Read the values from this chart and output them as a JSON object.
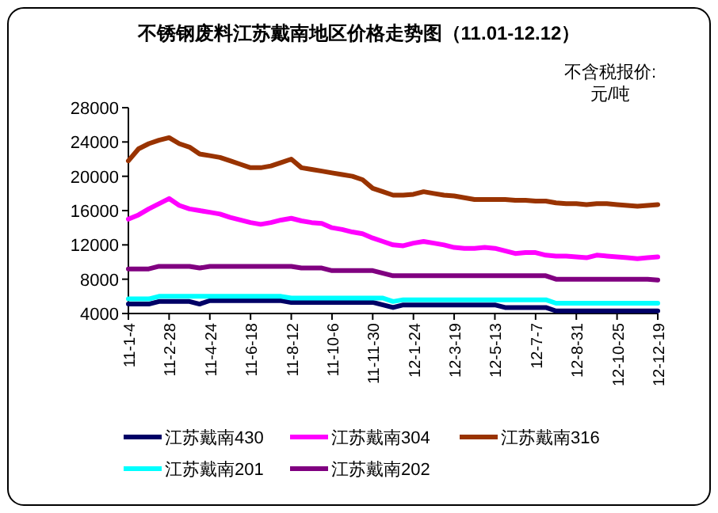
{
  "chart_data": {
    "type": "line",
    "title": "不锈钢废料江苏戴南地区价格走势图（11.01-12.12）",
    "annotations": [
      "不含税报价:",
      "元/吨"
    ],
    "categories": [
      "11-1-4",
      null,
      null,
      null,
      "11-2-28",
      null,
      null,
      null,
      "11-4-24",
      null,
      null,
      null,
      "11-6-18",
      null,
      null,
      null,
      "11-8-12",
      null,
      null,
      null,
      "11-10-6",
      null,
      null,
      null,
      "11-11-30",
      null,
      null,
      null,
      "12-1-24",
      null,
      null,
      null,
      "12-3-19",
      null,
      null,
      null,
      "12-5-13",
      null,
      null,
      null,
      "12-7-7",
      null,
      null,
      null,
      "12-8-31",
      null,
      null,
      null,
      "12-10-25",
      null,
      null,
      null,
      "12-12-19"
    ],
    "series": [
      {
        "name": "江苏戴南430",
        "color": "#000066",
        "values": [
          5100,
          5100,
          5100,
          5400,
          5400,
          5400,
          5400,
          5100,
          5500,
          5500,
          5500,
          5500,
          5500,
          5500,
          5500,
          5500,
          5300,
          5300,
          5300,
          5300,
          5300,
          5300,
          5300,
          5300,
          5300,
          5000,
          4700,
          5000,
          5000,
          5000,
          5000,
          5000,
          5000,
          5000,
          5000,
          5000,
          5000,
          4700,
          4700,
          4700,
          4700,
          4700,
          4300,
          4300,
          4300,
          4300,
          4300,
          4300,
          4300,
          4300,
          4300,
          4300,
          4300
        ]
      },
      {
        "name": "江苏戴南304",
        "color": "#ff00ff",
        "values": [
          15000,
          15500,
          16200,
          16800,
          17400,
          16600,
          16200,
          16000,
          15800,
          15600,
          15200,
          14900,
          14600,
          14400,
          14600,
          14900,
          15100,
          14800,
          14600,
          14500,
          14000,
          13800,
          13500,
          13300,
          12800,
          12400,
          12000,
          11900,
          12200,
          12400,
          12200,
          12000,
          11700,
          11600,
          11600,
          11700,
          11600,
          11300,
          11000,
          11100,
          11100,
          10800,
          10700,
          10700,
          10600,
          10500,
          10800,
          10700,
          10600,
          10500,
          10400,
          10500,
          10600
        ]
      },
      {
        "name": "江苏戴南316",
        "color": "#993300",
        "values": [
          21800,
          23200,
          23800,
          24200,
          24500,
          23800,
          23400,
          22600,
          22400,
          22200,
          21800,
          21400,
          21000,
          21000,
          21200,
          21600,
          22000,
          21000,
          20800,
          20600,
          20400,
          20200,
          20000,
          19600,
          18600,
          18200,
          17800,
          17800,
          17900,
          18200,
          18000,
          17800,
          17700,
          17500,
          17300,
          17300,
          17300,
          17300,
          17200,
          17200,
          17100,
          17100,
          16900,
          16800,
          16800,
          16700,
          16800,
          16800,
          16700,
          16600,
          16500,
          16600,
          16700
        ]
      },
      {
        "name": "江苏戴南201",
        "color": "#00ffff",
        "values": [
          5700,
          5700,
          5700,
          6000,
          6000,
          6000,
          6000,
          6000,
          6000,
          6000,
          6000,
          6000,
          6000,
          6000,
          6000,
          6000,
          5800,
          5800,
          5800,
          5800,
          5800,
          5800,
          5800,
          5800,
          5800,
          5800,
          5400,
          5600,
          5600,
          5600,
          5600,
          5600,
          5600,
          5600,
          5600,
          5600,
          5600,
          5600,
          5600,
          5600,
          5600,
          5600,
          5200,
          5200,
          5200,
          5200,
          5200,
          5200,
          5200,
          5200,
          5200,
          5200,
          5200
        ]
      },
      {
        "name": "江苏戴南202",
        "color": "#800080",
        "values": [
          9200,
          9200,
          9200,
          9500,
          9500,
          9500,
          9500,
          9300,
          9500,
          9500,
          9500,
          9500,
          9500,
          9500,
          9500,
          9500,
          9500,
          9300,
          9300,
          9300,
          9000,
          9000,
          9000,
          9000,
          9000,
          8700,
          8400,
          8400,
          8400,
          8400,
          8400,
          8400,
          8400,
          8400,
          8400,
          8400,
          8400,
          8400,
          8400,
          8400,
          8400,
          8400,
          8000,
          8000,
          8000,
          8000,
          8000,
          8000,
          8000,
          8000,
          8000,
          8000,
          7900
        ]
      }
    ],
    "ylim": [
      4000,
      28000
    ],
    "yticks": [
      4000,
      8000,
      12000,
      16000,
      20000,
      24000,
      28000
    ],
    "grid": false,
    "legend": "bottom",
    "marker": "none",
    "line_style": "solid"
  }
}
